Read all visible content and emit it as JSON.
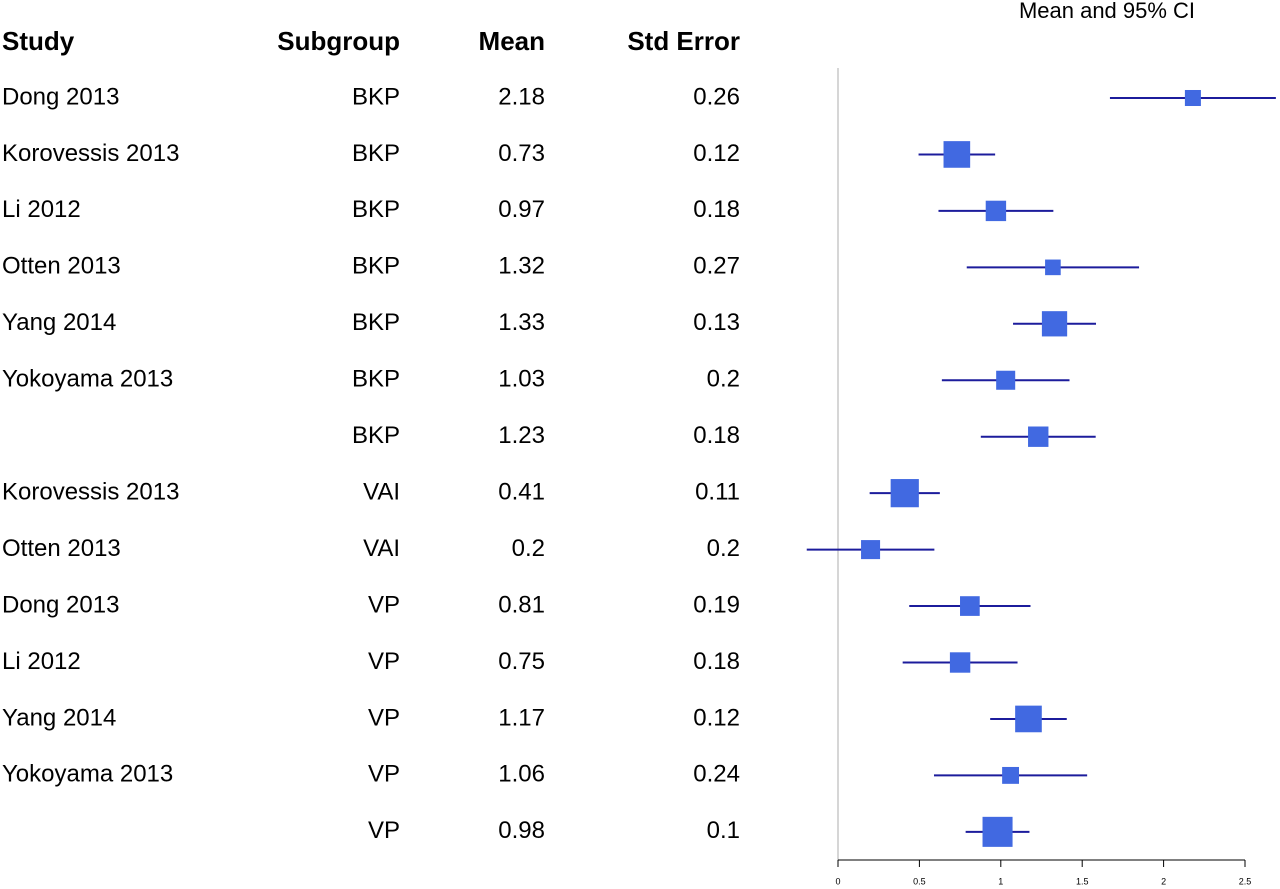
{
  "chart_data": {
    "type": "forest",
    "title": "Mean and 95% CI",
    "columns": [
      "Study",
      "Subgroup",
      "Mean",
      "Std Error"
    ],
    "rows": [
      {
        "study": "Dong 2013",
        "subgroup": "BKP",
        "mean": 2.18,
        "std_error": 0.26
      },
      {
        "study": "Korovessis 2013",
        "subgroup": "BKP",
        "mean": 0.73,
        "std_error": 0.12
      },
      {
        "study": "Li 2012",
        "subgroup": "BKP",
        "mean": 0.97,
        "std_error": 0.18
      },
      {
        "study": "Otten 2013",
        "subgroup": "BKP",
        "mean": 1.32,
        "std_error": 0.27
      },
      {
        "study": "Yang 2014",
        "subgroup": "BKP",
        "mean": 1.33,
        "std_error": 0.13
      },
      {
        "study": "Yokoyama 2013",
        "subgroup": "BKP",
        "mean": 1.03,
        "std_error": 0.2
      },
      {
        "study": null,
        "subgroup": "BKP",
        "mean": 1.23,
        "std_error": 0.18
      },
      {
        "study": "Korovessis 2013",
        "subgroup": "VAI",
        "mean": 0.41,
        "std_error": 0.11
      },
      {
        "study": "Otten 2013",
        "subgroup": "VAI",
        "mean": 0.2,
        "std_error": 0.2
      },
      {
        "study": "Dong 2013",
        "subgroup": "VP",
        "mean": 0.81,
        "std_error": 0.19
      },
      {
        "study": "Li 2012",
        "subgroup": "VP",
        "mean": 0.75,
        "std_error": 0.18
      },
      {
        "study": "Yang 2014",
        "subgroup": "VP",
        "mean": 1.17,
        "std_error": 0.12
      },
      {
        "study": "Yokoyama 2013",
        "subgroup": "VP",
        "mean": 1.06,
        "std_error": 0.24
      },
      {
        "study": null,
        "subgroup": "VP",
        "mean": 0.98,
        "std_error": 0.1
      }
    ],
    "xlim": [
      0,
      2.5
    ],
    "xticks": [
      0,
      0.5,
      1,
      1.5,
      2,
      2.5
    ],
    "color": "#4169e1",
    "line_color": "#1c1c9c"
  }
}
